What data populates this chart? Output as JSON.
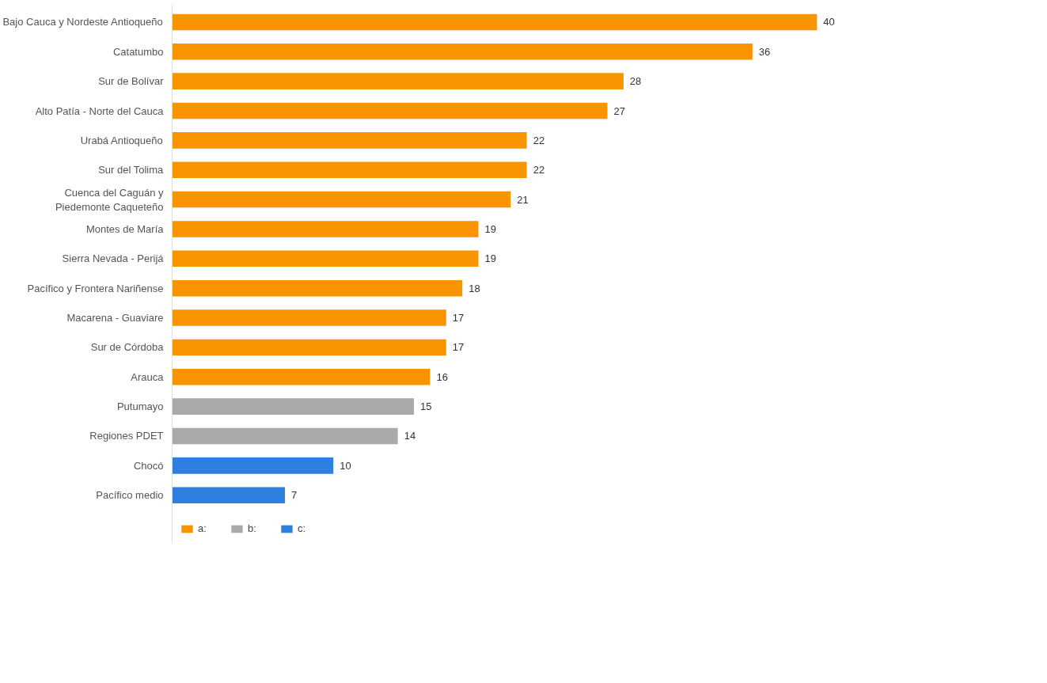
{
  "chart_data": {
    "type": "bar",
    "orientation": "horizontal",
    "data_labels": true,
    "grid": false,
    "legend": "bottom left",
    "categories": [
      "Bajo Cauca y Nordeste Antioqueño",
      "Catatumbo",
      "Sur de Bolívar",
      "Alto Patía - Norte del Cauca",
      "Urabá Antioqueño",
      "Sur del Tolima",
      "Cuenca del Caguán y\nPiedemonte Caqueteño",
      "Montes de María",
      "Sierra Nevada - Perijá",
      "Pacífico y Frontera Nariñense",
      "Macarena - Guaviare",
      "Sur de Córdoba",
      "Arauca",
      "Putumayo",
      "Regiones PDET",
      "Chocó",
      "Pacífico medio"
    ],
    "series": [
      {
        "name": "a:",
        "color": "#f79400",
        "values": [
          40,
          36,
          28,
          27,
          22,
          22,
          21,
          19,
          19,
          18,
          17,
          17,
          16,
          null,
          null,
          null,
          null
        ]
      },
      {
        "name": "b:",
        "color": "#aaaaaa",
        "values": [
          null,
          null,
          null,
          null,
          null,
          null,
          null,
          null,
          null,
          null,
          null,
          null,
          null,
          15,
          14,
          null,
          null
        ]
      },
      {
        "name": "c:",
        "color": "#2f7fde",
        "values": [
          null,
          null,
          null,
          null,
          null,
          null,
          null,
          null,
          null,
          null,
          null,
          null,
          null,
          null,
          null,
          10,
          7
        ]
      }
    ]
  }
}
